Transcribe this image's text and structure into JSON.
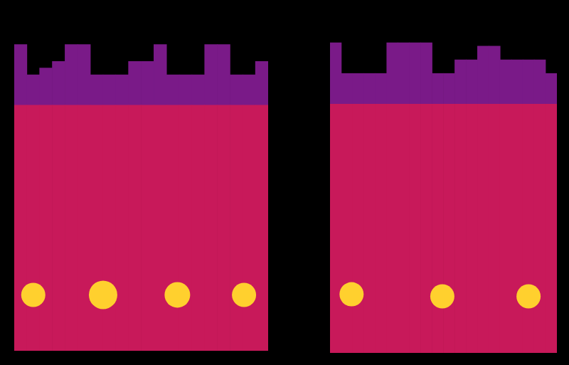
{
  "chart_data": [
    {
      "type": "bar",
      "stacked": true,
      "grid": false,
      "tick_labels": false,
      "xlim": [
        0,
        20
      ],
      "ylim": [
        0,
        100
      ],
      "x": [
        0.5,
        1.5,
        2.5,
        3.5,
        4.5,
        5.5,
        6.5,
        7.5,
        8.5,
        9.5,
        10.5,
        11.5,
        12.5,
        13.5,
        14.5,
        15.5,
        16.5,
        17.5,
        18.5,
        19.5
      ],
      "series": [
        {
          "color": "#c8195a",
          "values": [
            73,
            73,
            73,
            73,
            73,
            73,
            73,
            73,
            73,
            73,
            73,
            73,
            73,
            73,
            73,
            73,
            73,
            73,
            73,
            73
          ]
        },
        {
          "color": "#7a1a88",
          "values": [
            18,
            9,
            11,
            13,
            18,
            18,
            9,
            9,
            9,
            13,
            13,
            18,
            9,
            9,
            9,
            18,
            18,
            9,
            9,
            13
          ]
        }
      ],
      "blobs": {
        "color": "#ffd02e",
        "x": [
          1.5,
          7.0,
          12.85,
          18.1
        ],
        "y": [
          16.6,
          16.6,
          16.6,
          16.6
        ],
        "size": [
          17,
          20,
          18,
          17
        ]
      }
    },
    {
      "type": "bar",
      "stacked": true,
      "grid": false,
      "tick_labels": false,
      "xlim": [
        0,
        20
      ],
      "ylim": [
        0,
        100
      ],
      "x": [
        0.5,
        1.5,
        2.5,
        3.5,
        4.5,
        5.5,
        6.5,
        7.5,
        8.5,
        9.5,
        10.5,
        11.5,
        12.5,
        13.5,
        14.5,
        15.5,
        16.5,
        17.5,
        18.5,
        19.5
      ],
      "series": [
        {
          "color": "#c8195a",
          "values": [
            73,
            73,
            73,
            73,
            73,
            73,
            73,
            73,
            73,
            73,
            73,
            73,
            73,
            73,
            73,
            73,
            73,
            73,
            73,
            73
          ]
        },
        {
          "color": "#7a1a88",
          "values": [
            18,
            9,
            9,
            9,
            9,
            18,
            18,
            18,
            18,
            9,
            9,
            13,
            13,
            17,
            17,
            13,
            13,
            13,
            13,
            9
          ]
        }
      ],
      "blobs": {
        "color": "#ffd02e",
        "x": [
          1.9,
          9.9,
          17.5
        ],
        "y": [
          17.2,
          16.6,
          16.6
        ],
        "size": [
          17,
          17,
          17
        ]
      }
    }
  ]
}
